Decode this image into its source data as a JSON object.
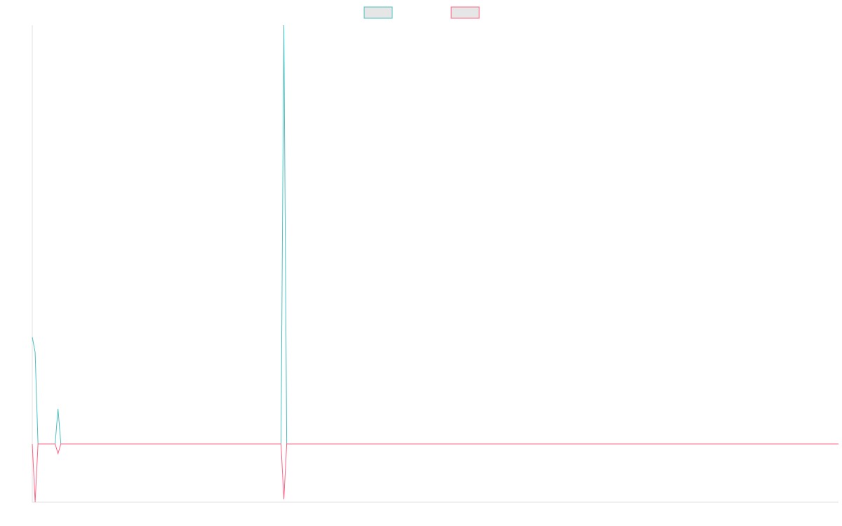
{
  "chart_data": {
    "type": "line",
    "x": [
      0,
      1,
      2,
      8,
      9,
      10,
      87,
      88,
      89,
      282
    ],
    "series": [
      {
        "color": "#4bc0c0",
        "values": [
          25.5,
          21.9,
          0,
          0,
          8.4,
          0,
          0,
          100,
          0,
          0
        ]
      },
      {
        "color": "#ff6384",
        "values": [
          0,
          -13.9,
          0,
          0,
          -2.3,
          0,
          0,
          -13.2,
          0,
          0
        ]
      }
    ],
    "xlim": [
      0,
      282
    ],
    "ylim": [
      -13.9,
      100
    ],
    "legend": "top"
  }
}
